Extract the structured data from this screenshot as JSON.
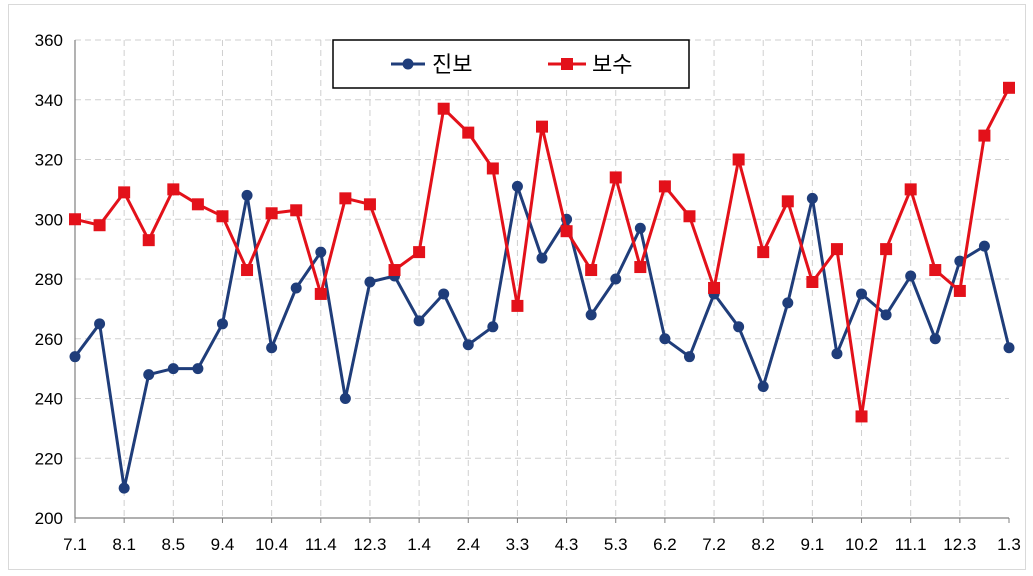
{
  "chart_data": {
    "type": "line",
    "title": "",
    "xlabel": "",
    "ylabel": "",
    "ylim": [
      200,
      360
    ],
    "yticks": [
      200,
      220,
      240,
      260,
      280,
      300,
      320,
      340,
      360
    ],
    "grid": true,
    "legend_position": "top-center",
    "x_tick_labels": [
      "7.1",
      "8.1",
      "8.5",
      "9.4",
      "10.4",
      "11.4",
      "12.3",
      "1.4",
      "2.4",
      "3.3",
      "4.3",
      "5.3",
      "6.2",
      "7.2",
      "8.2",
      "9.1",
      "10.2",
      "11.1",
      "12.3",
      "1.3"
    ],
    "point_count": 39,
    "series": [
      {
        "name": "진보",
        "color": "#1f3d7a",
        "marker": "circle",
        "values": [
          254,
          265,
          210,
          248,
          250,
          250,
          265,
          308,
          257,
          277,
          289,
          240,
          279,
          281,
          266,
          275,
          258,
          264,
          311,
          287,
          300,
          268,
          280,
          297,
          260,
          254,
          275,
          264,
          244,
          272,
          307,
          255,
          275,
          268,
          281,
          260,
          286,
          291,
          257
        ]
      },
      {
        "name": "보수",
        "color": "#e3111a",
        "marker": "square",
        "values": [
          300,
          298,
          309,
          293,
          310,
          305,
          301,
          283,
          302,
          303,
          275,
          307,
          305,
          283,
          289,
          337,
          329,
          317,
          271,
          331,
          296,
          283,
          314,
          284,
          311,
          301,
          277,
          320,
          289,
          306,
          279,
          290,
          234,
          290,
          310,
          283,
          276,
          328,
          344
        ]
      }
    ]
  }
}
